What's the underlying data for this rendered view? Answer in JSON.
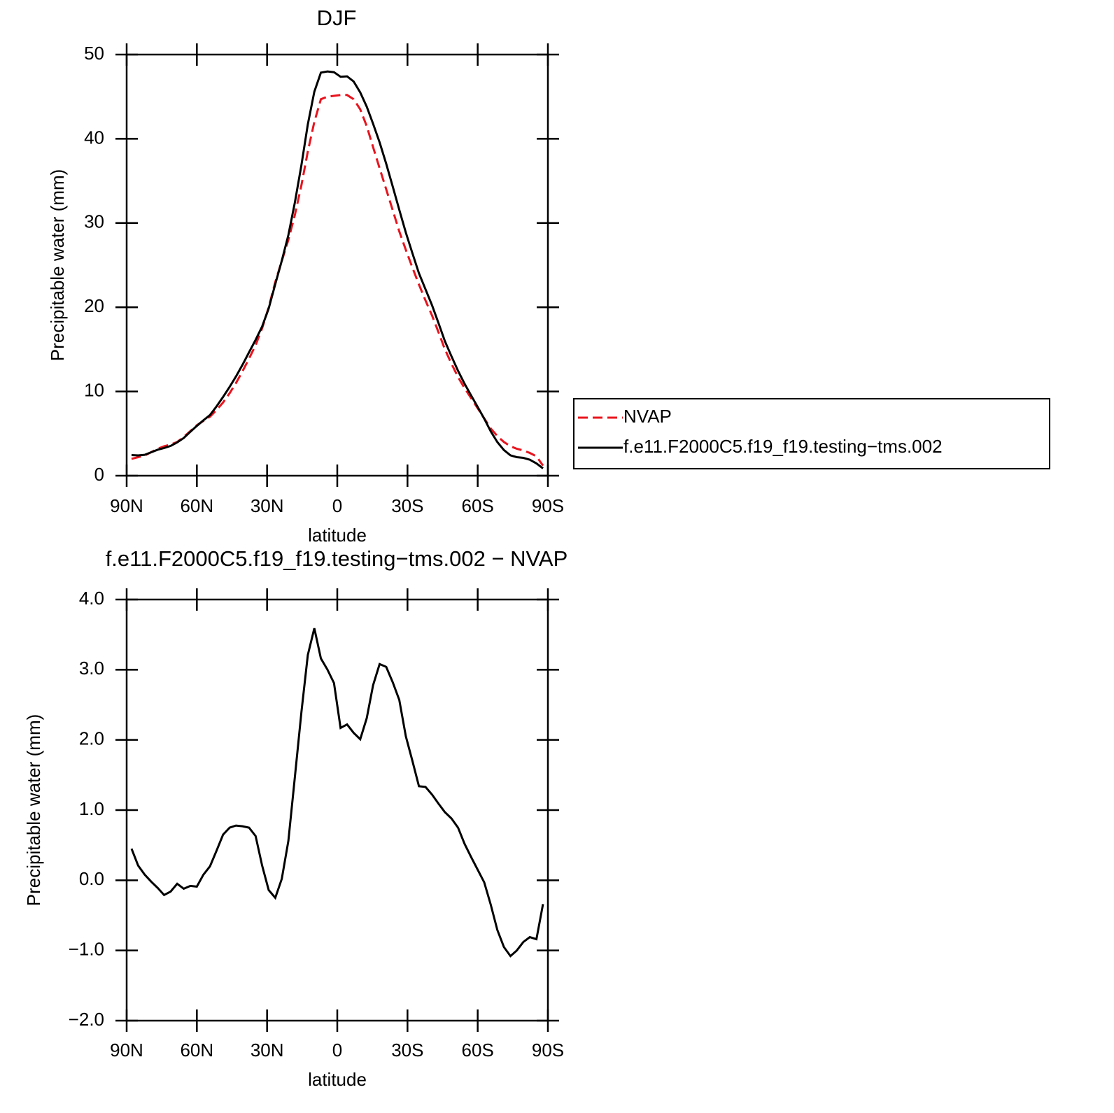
{
  "chart_data": [
    {
      "type": "line",
      "title": "DJF",
      "xlabel": "latitude",
      "ylabel": "Precipitable water (mm)",
      "x": [
        87.9,
        85.1,
        82.3,
        79.5,
        76.7,
        74.0,
        71.2,
        68.4,
        65.6,
        62.8,
        60.0,
        57.2,
        54.4,
        51.6,
        48.8,
        46.0,
        43.3,
        40.5,
        37.7,
        34.9,
        32.1,
        29.3,
        26.5,
        23.7,
        20.9,
        18.1,
        15.3,
        12.6,
        9.8,
        7.0,
        4.2,
        1.4,
        -1.4,
        -4.2,
        -7.0,
        -9.8,
        -12.6,
        -15.3,
        -18.1,
        -20.9,
        -23.7,
        -26.5,
        -29.3,
        -32.1,
        -34.9,
        -37.7,
        -40.5,
        -43.3,
        -46.0,
        -48.8,
        -51.6,
        -54.4,
        -57.2,
        -60.0,
        -62.8,
        -65.6,
        -68.4,
        -71.2,
        -74.0,
        -76.7,
        -79.5,
        -82.3,
        -85.1,
        -87.9
      ],
      "series": [
        {
          "name": "NVAP",
          "color": "#e8141e",
          "line_style": "dashed",
          "values": [
            2.0,
            2.2,
            2.4,
            2.8,
            3.2,
            3.5,
            3.7,
            4.0,
            4.6,
            5.3,
            6.0,
            6.5,
            7.0,
            7.8,
            8.7,
            9.8,
            11.0,
            12.4,
            13.9,
            15.5,
            17.5,
            20.0,
            23.0,
            25.5,
            28.0,
            31.0,
            34.5,
            38.5,
            42.0,
            44.7,
            45.0,
            45.1,
            45.2,
            45.2,
            44.7,
            43.5,
            41.5,
            39.0,
            36.5,
            34.0,
            31.5,
            29.0,
            26.8,
            24.7,
            22.7,
            20.8,
            19.0,
            17.0,
            15.0,
            13.3,
            11.7,
            10.4,
            9.2,
            8.0,
            6.8,
            5.6,
            4.7,
            4.0,
            3.5,
            3.2,
            3.0,
            2.7,
            2.3,
            1.2
          ]
        },
        {
          "name": "f.e11.F2000C5.f19_f19.testing−tms.002",
          "color": "#000000",
          "line_style": "solid",
          "values": [
            2.45,
            2.41,
            2.48,
            2.78,
            3.09,
            3.29,
            3.54,
            3.95,
            4.48,
            5.22,
            5.91,
            6.58,
            7.2,
            8.22,
            9.35,
            10.55,
            11.78,
            13.17,
            14.65,
            16.13,
            17.71,
            19.86,
            22.75,
            25.52,
            28.56,
            32.48,
            36.9,
            41.71,
            45.59,
            47.86,
            48.0,
            47.91,
            47.37,
            47.42,
            46.8,
            45.51,
            43.81,
            41.78,
            39.58,
            37.04,
            34.32,
            31.57,
            28.85,
            26.4,
            24.04,
            22.13,
            20.22,
            18.09,
            15.97,
            14.18,
            12.45,
            10.92,
            9.53,
            8.15,
            6.77,
            5.25,
            3.99,
            3.05,
            2.42,
            2.2,
            2.12,
            1.89,
            1.46,
            0.86
          ]
        }
      ],
      "xlim": [
        90,
        -90
      ],
      "xticks": [
        {
          "value": 90,
          "label": "90N"
        },
        {
          "value": 60,
          "label": "60N"
        },
        {
          "value": 30,
          "label": "30N"
        },
        0,
        {
          "value": -30,
          "label": "30S"
        },
        {
          "value": -60,
          "label": "60S"
        },
        {
          "value": -90,
          "label": "90S"
        }
      ],
      "ylim": [
        0,
        50
      ],
      "yticks": [
        0,
        10,
        20,
        30,
        40,
        50
      ],
      "legend": "right"
    },
    {
      "type": "line",
      "title": "f.e11.F2000C5.f19_f19.testing−tms.002 − NVAP",
      "xlabel": "latitude",
      "ylabel": "Precipitable water (mm)",
      "x": [
        87.9,
        85.1,
        82.3,
        79.5,
        76.7,
        74.0,
        71.2,
        68.4,
        65.6,
        62.8,
        60.0,
        57.2,
        54.4,
        51.6,
        48.8,
        46.0,
        43.3,
        40.5,
        37.7,
        34.9,
        32.1,
        29.3,
        26.5,
        23.7,
        20.9,
        18.1,
        15.3,
        12.6,
        9.8,
        7.0,
        4.2,
        1.4,
        -1.4,
        -4.2,
        -7.0,
        -9.8,
        -12.6,
        -15.3,
        -18.1,
        -20.9,
        -23.7,
        -26.5,
        -29.3,
        -32.1,
        -34.9,
        -37.7,
        -40.5,
        -43.3,
        -46.0,
        -48.8,
        -51.6,
        -54.4,
        -57.2,
        -60.0,
        -62.8,
        -65.6,
        -68.4,
        -71.2,
        -74.0,
        -76.7,
        -79.5,
        -82.3,
        -85.1,
        -87.9
      ],
      "color": "#000000",
      "values": [
        0.45,
        0.21,
        0.08,
        -0.02,
        -0.11,
        -0.21,
        -0.16,
        -0.05,
        -0.12,
        -0.08,
        -0.09,
        0.08,
        0.2,
        0.42,
        0.65,
        0.75,
        0.78,
        0.77,
        0.75,
        0.63,
        0.21,
        -0.14,
        -0.25,
        0.02,
        0.56,
        1.48,
        2.4,
        3.21,
        3.59,
        3.16,
        3.0,
        2.81,
        2.17,
        2.22,
        2.1,
        2.01,
        2.31,
        2.78,
        3.08,
        3.04,
        2.82,
        2.57,
        2.05,
        1.7,
        1.34,
        1.33,
        1.22,
        1.09,
        0.97,
        0.88,
        0.75,
        0.52,
        0.33,
        0.15,
        -0.03,
        -0.35,
        -0.71,
        -0.95,
        -1.08,
        -1.0,
        -0.88,
        -0.81,
        -0.84,
        -0.34
      ],
      "xlim": [
        90,
        -90
      ],
      "xticks": [
        {
          "value": 90,
          "label": "90N"
        },
        {
          "value": 60,
          "label": "60N"
        },
        {
          "value": 30,
          "label": "30N"
        },
        0,
        {
          "value": -30,
          "label": "30S"
        },
        {
          "value": -60,
          "label": "60S"
        },
        {
          "value": -90,
          "label": "90S"
        }
      ],
      "ylim": [
        -2,
        4
      ],
      "yticks": [
        {
          "value": -2,
          "label": "−2.0"
        },
        {
          "value": -1,
          "label": "−1.0"
        },
        {
          "value": 0,
          "label": "0.0"
        },
        {
          "value": 1,
          "label": "1.0"
        },
        {
          "value": 2,
          "label": "2.0"
        },
        {
          "value": 3,
          "label": "3.0"
        },
        {
          "value": 4,
          "label": "4.0"
        }
      ]
    }
  ]
}
